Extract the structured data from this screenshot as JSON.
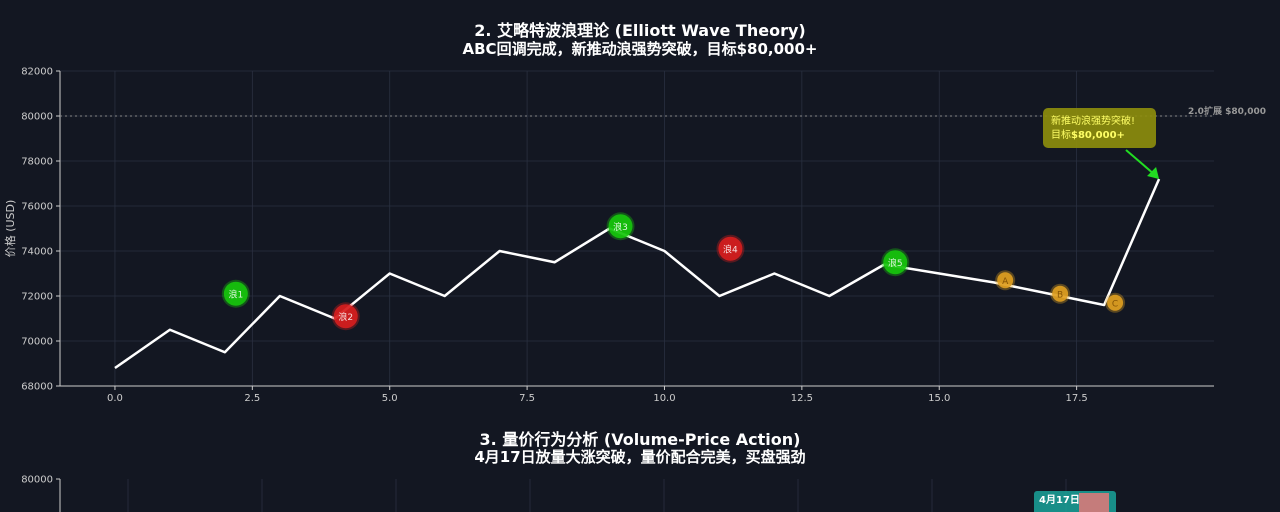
{
  "panel2": {
    "title_line1": "2. 艾略特波浪理论 (Elliott Wave Theory)",
    "title_line2": "ABC回调完成，新推动浪强势突破，目标$80,000+",
    "ylabel": "价格 (USD)"
  },
  "panel3": {
    "title_line1": "3. 量价行为分析 (Volume-Price Action)",
    "title_line2": "4月17日放量大涨突破，量价配合完美，买盘强劲",
    "ytick_top": "80000",
    "annotation_text": "4月17日"
  },
  "colors": {
    "background": "#131722",
    "line": "#ffffff",
    "impulse_marker": "#16c60c",
    "corrective_marker": "#d81e1e",
    "abc_marker": "#e0a020",
    "annotation_bg": "#8f8f0c",
    "annotation_text": "#ffff66",
    "arrow": "#22dd22",
    "grid": "#2a3040",
    "target_line": "#888888"
  },
  "chart_data": [
    {
      "type": "line",
      "title": "2. 艾略特波浪理论 (Elliott Wave Theory)",
      "subtitle": "ABC回调完成，新推动浪强势突破，目标$80,000+",
      "xlabel": "",
      "ylabel": "价格 (USD)",
      "xlim": [
        -1,
        20
      ],
      "ylim": [
        68000,
        82000
      ],
      "xticks": [
        0.0,
        2.5,
        5.0,
        7.5,
        10.0,
        12.5,
        15.0,
        17.5
      ],
      "xtick_labels": [
        "0.0",
        "2.5",
        "5.0",
        "7.5",
        "10.0",
        "12.5",
        "15.0",
        "17.5"
      ],
      "yticks": [
        68000,
        70000,
        72000,
        74000,
        76000,
        78000,
        80000,
        82000
      ],
      "ytick_labels": [
        "68000",
        "70000",
        "72000",
        "74000",
        "76000",
        "78000",
        "80000",
        "82000"
      ],
      "grid": true,
      "series": [
        {
          "x": [
            0,
            1,
            2,
            3,
            4,
            5,
            6,
            7,
            8,
            9,
            10,
            11,
            12,
            13,
            14,
            15,
            16,
            17,
            18,
            19
          ],
          "values": [
            68800,
            70500,
            69500,
            72000,
            71000,
            73000,
            72000,
            74000,
            73500,
            75000,
            74000,
            72000,
            73000,
            72000,
            73400,
            73000,
            72600,
            72100,
            71600,
            77200
          ]
        }
      ],
      "wave_markers": [
        {
          "label": "浪1",
          "x": 2.2,
          "y": 72100,
          "kind": "impulse"
        },
        {
          "label": "浪2",
          "x": 4.2,
          "y": 71100,
          "kind": "corrective"
        },
        {
          "label": "浪3",
          "x": 9.2,
          "y": 75100,
          "kind": "impulse"
        },
        {
          "label": "浪4",
          "x": 11.2,
          "y": 74100,
          "kind": "corrective"
        },
        {
          "label": "浪5",
          "x": 14.2,
          "y": 73500,
          "kind": "impulse"
        },
        {
          "label": "A",
          "x": 16.2,
          "y": 72700,
          "kind": "abc"
        },
        {
          "label": "B",
          "x": 17.2,
          "y": 72100,
          "kind": "abc"
        },
        {
          "label": "C",
          "x": 18.2,
          "y": 71700,
          "kind": "abc"
        }
      ],
      "target_line": {
        "y": 80000,
        "label": "2.0扩展 $80,000"
      },
      "annotation": {
        "line1": "新推动浪强势突破!",
        "line2_prefix": "目标",
        "line2_value": "$80,000+",
        "arrow_to": {
          "x": 19,
          "y": 77200
        }
      }
    }
  ]
}
